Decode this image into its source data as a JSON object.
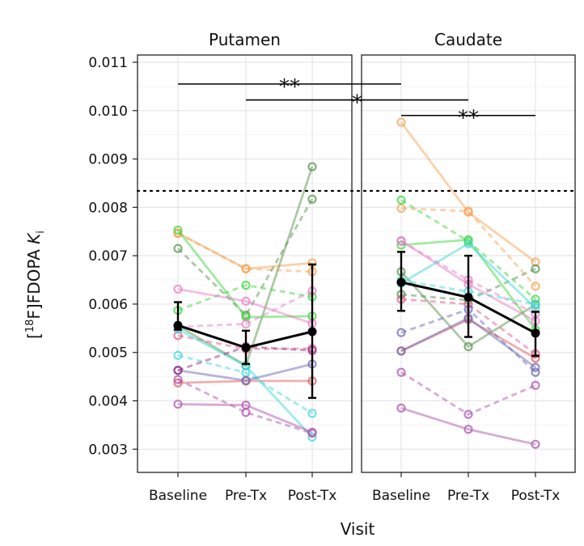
{
  "chart_data": {
    "type": "line",
    "panels": [
      {
        "title": "Putamen",
        "subjects": [
          {
            "color": "#f5a55a",
            "dash": false,
            "values": [
              0.00747,
              0.00673,
              0.00685
            ]
          },
          {
            "color": "#f5a55a",
            "dash": true,
            "values": [
              0.00746,
              0.00673,
              0.00667
            ]
          },
          {
            "color": "#5a9650",
            "dash": true,
            "values": [
              0.00715,
              0.00577,
              0.00817
            ]
          },
          {
            "color": "#5a9650",
            "dash": false,
            "values": [
              0.00555,
              0.00473,
              0.00884
            ]
          },
          {
            "color": "#44d744",
            "dash": false,
            "values": [
              0.00753,
              0.00573,
              0.00575
            ]
          },
          {
            "color": "#44d744",
            "dash": true,
            "values": [
              0.00587,
              0.00639,
              0.00615
            ]
          },
          {
            "color": "#e880c8",
            "dash": false,
            "values": [
              0.00631,
              0.00606,
              0.0056
            ]
          },
          {
            "color": "#e880c8",
            "dash": true,
            "values": [
              0.00553,
              0.00559,
              0.00627
            ]
          },
          {
            "color": "#e0608a",
            "dash": true,
            "values": [
              0.00535,
              0.00507,
              0.00508
            ]
          },
          {
            "color": "#e06060",
            "dash": false,
            "values": [
              0.00437,
              0.00441,
              0.00441
            ]
          },
          {
            "color": "#40d8d8",
            "dash": false,
            "values": [
              0.00548,
              0.00472,
              0.00325
            ]
          },
          {
            "color": "#40d8d8",
            "dash": true,
            "values": [
              0.00494,
              0.00458,
              0.00374
            ]
          },
          {
            "color": "#6d6db8",
            "dash": false,
            "values": [
              0.00463,
              0.00442,
              0.00476
            ]
          },
          {
            "color": "#9b2c8a",
            "dash": true,
            "values": [
              0.00463,
              0.00512,
              0.00504
            ]
          },
          {
            "color": "#b058b0",
            "dash": false,
            "values": [
              0.00393,
              0.00391,
              0.00335
            ]
          },
          {
            "color": "#b058b0",
            "dash": true,
            "values": [
              0.00444,
              0.00376,
              0.00333
            ]
          }
        ],
        "mean": {
          "values": [
            0.00556,
            0.0051,
            0.00543
          ],
          "error_low": [
            0.00547,
            0.00476,
            0.00406
          ],
          "error_high": [
            0.00604,
            0.00545,
            0.00682
          ]
        }
      },
      {
        "title": "Caudate",
        "subjects": [
          {
            "color": "#f5a55a",
            "dash": false,
            "values": [
              0.00976,
              0.0079,
              0.00687
            ]
          },
          {
            "color": "#f5a55a",
            "dash": true,
            "values": [
              0.00798,
              0.00792,
              0.00637
            ]
          },
          {
            "color": "#44d744",
            "dash": true,
            "values": [
              0.00815,
              0.0073,
              0.0061
            ]
          },
          {
            "color": "#44d744",
            "dash": false,
            "values": [
              0.00722,
              0.00733,
              0.00547
            ]
          },
          {
            "color": "#5a9650",
            "dash": false,
            "values": [
              0.00667,
              0.00512,
              0.00599
            ]
          },
          {
            "color": "#5a9650",
            "dash": true,
            "values": [
              0.0062,
              0.00608,
              0.00673
            ]
          },
          {
            "color": "#e880c8",
            "dash": false,
            "values": [
              0.00731,
              0.00641,
              0.00565
            ]
          },
          {
            "color": "#e880c8",
            "dash": true,
            "values": [
              0.0073,
              0.0065,
              0.0058
            ]
          },
          {
            "color": "#e0608a",
            "dash": true,
            "values": [
              0.0061,
              0.006,
              0.00497
            ]
          },
          {
            "color": "#e06060",
            "dash": false,
            "values": [
              0.00503,
              0.00568,
              0.00488
            ]
          },
          {
            "color": "#40d8d8",
            "dash": false,
            "values": [
              0.00643,
              0.00725,
              0.00592
            ]
          },
          {
            "color": "#40d8d8",
            "dash": true,
            "values": [
              0.00649,
              0.00626,
              0.006
            ]
          },
          {
            "color": "#6d6db8",
            "dash": true,
            "values": [
              0.00541,
              0.00589,
              0.00459
            ]
          },
          {
            "color": "#6d6db8",
            "dash": false,
            "values": [
              0.00503,
              0.00571,
              0.00469
            ]
          },
          {
            "color": "#b058b0",
            "dash": true,
            "values": [
              0.00459,
              0.00372,
              0.00432
            ]
          },
          {
            "color": "#b058b0",
            "dash": false,
            "values": [
              0.00385,
              0.00341,
              0.0031
            ]
          }
        ],
        "mean": {
          "values": [
            0.00645,
            0.00614,
            0.0054
          ],
          "error_low": [
            0.00586,
            0.00532,
            0.00493
          ],
          "error_high": [
            0.00708,
            0.007,
            0.00584
          ]
        }
      }
    ],
    "categories": [
      "Baseline",
      "Pre-Tx",
      "Post-Tx"
    ],
    "ylim": [
      0.00252,
      0.01115
    ],
    "yticks": [
      0.003,
      0.004,
      0.005,
      0.006,
      0.007,
      0.008,
      0.009,
      0.01,
      0.011
    ],
    "ytick_labels": [
      "0.003",
      "0.004",
      "0.005",
      "0.006",
      "0.007",
      "0.008",
      "0.009",
      "0.010",
      "0.011"
    ],
    "ylabel": "[18F]FDOPA Ki",
    "ylabel_parts": {
      "open": "[",
      "superscript": "18",
      "rest": "F]FDOPA ",
      "italic": "K",
      "subscript": "i"
    },
    "xlabel": "Visit",
    "reference_line": {
      "value": 0.00834,
      "style": "dotted"
    },
    "significance": [
      {
        "label": "**",
        "from": {
          "panel": 0,
          "visit": 0
        },
        "to": {
          "panel": 1,
          "visit": 0
        },
        "y": 0.01055
      },
      {
        "label": "*",
        "from": {
          "panel": 0,
          "visit": 1
        },
        "to": {
          "panel": 1,
          "visit": 1
        },
        "y": 0.01022
      },
      {
        "label": "**",
        "from": {
          "panel": 1,
          "visit": 0
        },
        "to": {
          "panel": 1,
          "visit": 2
        },
        "y": 0.0099
      }
    ]
  }
}
